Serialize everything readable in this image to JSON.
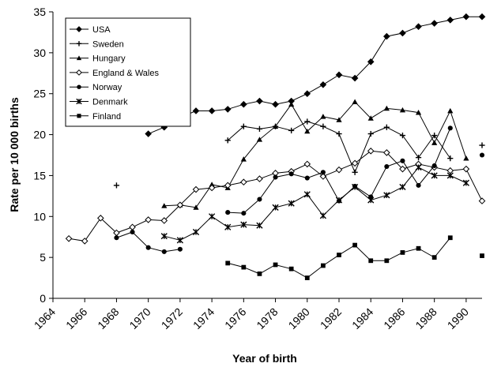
{
  "chart_data": {
    "type": "line",
    "title": "",
    "xlabel": "Year of birth",
    "ylabel": "Rate per 10 000 births",
    "xlim": [
      1964,
      1991
    ],
    "ylim": [
      0,
      35
    ],
    "x_ticks": [
      1964,
      1966,
      1968,
      1970,
      1972,
      1974,
      1976,
      1978,
      1980,
      1982,
      1984,
      1986,
      1988,
      1990
    ],
    "y_ticks": [
      0,
      5,
      10,
      15,
      20,
      25,
      30,
      35
    ],
    "grid": false,
    "legend_position": "top-left",
    "series": [
      {
        "name": "USA",
        "marker": "diamond",
        "points": [
          [
            1970,
            20.1
          ],
          [
            1971,
            20.9
          ],
          [
            1972,
            22.1
          ],
          [
            1973,
            22.9
          ],
          [
            1974,
            22.9
          ],
          [
            1975,
            23.1
          ],
          [
            1976,
            23.7
          ],
          [
            1977,
            24.1
          ],
          [
            1978,
            23.7
          ],
          [
            1979,
            24.1
          ],
          [
            1980,
            25.0
          ],
          [
            1981,
            26.1
          ],
          [
            1982,
            27.3
          ],
          [
            1983,
            26.9
          ],
          [
            1984,
            28.9
          ],
          [
            1985,
            32.0
          ],
          [
            1986,
            32.4
          ],
          [
            1987,
            33.2
          ],
          [
            1988,
            33.6
          ],
          [
            1989,
            34.0
          ],
          [
            1990,
            34.4
          ],
          [
            1991,
            34.4
          ]
        ]
      },
      {
        "name": "Sweden",
        "marker": "plus",
        "points": [
          [
            1968,
            13.8
          ],
          [
            1975,
            19.3
          ],
          [
            1976,
            21.0
          ],
          [
            1977,
            20.7
          ],
          [
            1978,
            21.0
          ],
          [
            1979,
            20.5
          ],
          [
            1980,
            21.6
          ],
          [
            1981,
            21.0
          ],
          [
            1982,
            20.1
          ],
          [
            1983,
            15.4
          ],
          [
            1984,
            20.1
          ],
          [
            1985,
            20.9
          ],
          [
            1986,
            19.9
          ],
          [
            1987,
            17.2
          ],
          [
            1988,
            19.9
          ],
          [
            1989,
            17.1
          ],
          [
            1991,
            18.7
          ]
        ]
      },
      {
        "name": "Hungary",
        "marker": "triangle",
        "points": [
          [
            1971,
            11.3
          ],
          [
            1972,
            11.4
          ],
          [
            1973,
            11.1
          ],
          [
            1974,
            13.9
          ],
          [
            1975,
            13.5
          ],
          [
            1976,
            17.0
          ],
          [
            1977,
            19.4
          ],
          [
            1978,
            21.0
          ],
          [
            1979,
            23.7
          ],
          [
            1980,
            20.4
          ],
          [
            1981,
            22.2
          ],
          [
            1982,
            21.8
          ],
          [
            1983,
            24.0
          ],
          [
            1984,
            22.0
          ],
          [
            1985,
            23.2
          ],
          [
            1986,
            23.0
          ],
          [
            1987,
            22.7
          ],
          [
            1988,
            19.0
          ],
          [
            1989,
            22.9
          ],
          [
            1990,
            17.1
          ]
        ]
      },
      {
        "name": "England & Wales",
        "marker": "diamond-open",
        "points": [
          [
            1965,
            7.3
          ],
          [
            1966,
            7.0
          ],
          [
            1967,
            9.8
          ],
          [
            1968,
            8.0
          ],
          [
            1969,
            8.7
          ],
          [
            1970,
            9.6
          ],
          [
            1971,
            9.5
          ],
          [
            1972,
            11.4
          ],
          [
            1973,
            13.3
          ],
          [
            1974,
            13.5
          ],
          [
            1975,
            13.8
          ],
          [
            1976,
            14.2
          ],
          [
            1977,
            14.6
          ],
          [
            1978,
            15.3
          ],
          [
            1979,
            15.5
          ],
          [
            1980,
            16.4
          ],
          [
            1981,
            14.9
          ],
          [
            1982,
            15.7
          ],
          [
            1983,
            16.5
          ],
          [
            1984,
            18.0
          ],
          [
            1985,
            17.8
          ],
          [
            1986,
            15.8
          ],
          [
            1987,
            16.4
          ],
          [
            1988,
            16.0
          ],
          [
            1989,
            15.6
          ],
          [
            1990,
            15.8
          ],
          [
            1991,
            11.9
          ]
        ]
      },
      {
        "name": "Norway",
        "marker": "circle",
        "points": [
          [
            1968,
            7.4
          ],
          [
            1969,
            8.1
          ],
          [
            1970,
            6.2
          ],
          [
            1971,
            5.7
          ],
          [
            1972,
            6.0
          ],
          [
            1975,
            10.5
          ],
          [
            1976,
            10.4
          ],
          [
            1977,
            12.1
          ],
          [
            1978,
            14.8
          ],
          [
            1979,
            15.2
          ],
          [
            1980,
            14.7
          ],
          [
            1981,
            15.4
          ],
          [
            1982,
            11.9
          ],
          [
            1983,
            13.7
          ],
          [
            1984,
            12.4
          ],
          [
            1985,
            16.1
          ],
          [
            1986,
            16.8
          ],
          [
            1987,
            13.8
          ],
          [
            1988,
            16.2
          ],
          [
            1989,
            20.8
          ],
          [
            1991,
            17.5
          ]
        ]
      },
      {
        "name": "Denmark",
        "marker": "star",
        "points": [
          [
            1971,
            7.6
          ],
          [
            1972,
            7.1
          ],
          [
            1973,
            8.1
          ],
          [
            1974,
            10.0
          ],
          [
            1975,
            8.7
          ],
          [
            1976,
            9.0
          ],
          [
            1977,
            8.9
          ],
          [
            1978,
            11.1
          ],
          [
            1979,
            11.6
          ],
          [
            1980,
            12.7
          ],
          [
            1981,
            10.1
          ],
          [
            1982,
            12.0
          ],
          [
            1983,
            13.6
          ],
          [
            1984,
            12.0
          ],
          [
            1985,
            12.6
          ],
          [
            1986,
            13.6
          ],
          [
            1987,
            16.0
          ],
          [
            1988,
            15.0
          ],
          [
            1989,
            15.0
          ],
          [
            1990,
            14.1
          ]
        ]
      },
      {
        "name": "Finland",
        "marker": "square",
        "points": [
          [
            1975,
            4.3
          ],
          [
            1976,
            3.8
          ],
          [
            1977,
            3.0
          ],
          [
            1978,
            4.1
          ],
          [
            1979,
            3.6
          ],
          [
            1980,
            2.5
          ],
          [
            1981,
            4.0
          ],
          [
            1982,
            5.3
          ],
          [
            1983,
            6.5
          ],
          [
            1984,
            4.6
          ],
          [
            1985,
            4.6
          ],
          [
            1986,
            5.6
          ],
          [
            1987,
            6.1
          ],
          [
            1988,
            5.0
          ],
          [
            1989,
            7.4
          ],
          [
            1991,
            5.2
          ]
        ]
      }
    ]
  }
}
